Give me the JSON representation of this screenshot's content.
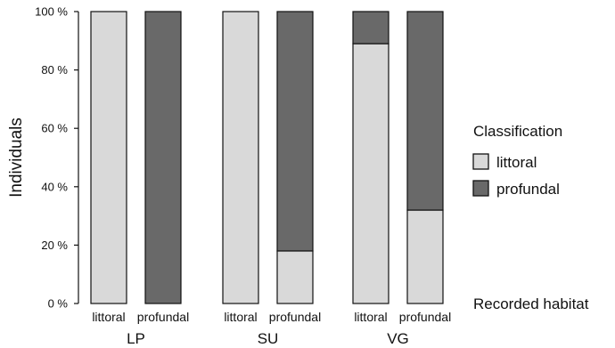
{
  "chart_data": {
    "type": "bar",
    "stacked": true,
    "ylabel": "Individuals",
    "ylim": [
      0,
      100
    ],
    "yticks": [
      "0 %",
      "20 %",
      "40 %",
      "60 %",
      "80 %",
      "100 %"
    ],
    "xlabel": "Recorded habitat",
    "groups": [
      "LP",
      "SU",
      "VG"
    ],
    "categories": [
      "littoral",
      "profundal"
    ],
    "legend": {
      "title": "Classification",
      "position": "right"
    },
    "series": [
      {
        "name": "littoral",
        "color": "#d9d9d9",
        "values": [
          [
            100,
            0
          ],
          [
            100,
            18
          ],
          [
            89,
            32
          ]
        ]
      },
      {
        "name": "profundal",
        "color": "#696969",
        "values": [
          [
            0,
            100
          ],
          [
            0,
            82
          ],
          [
            11,
            68
          ]
        ]
      }
    ]
  }
}
